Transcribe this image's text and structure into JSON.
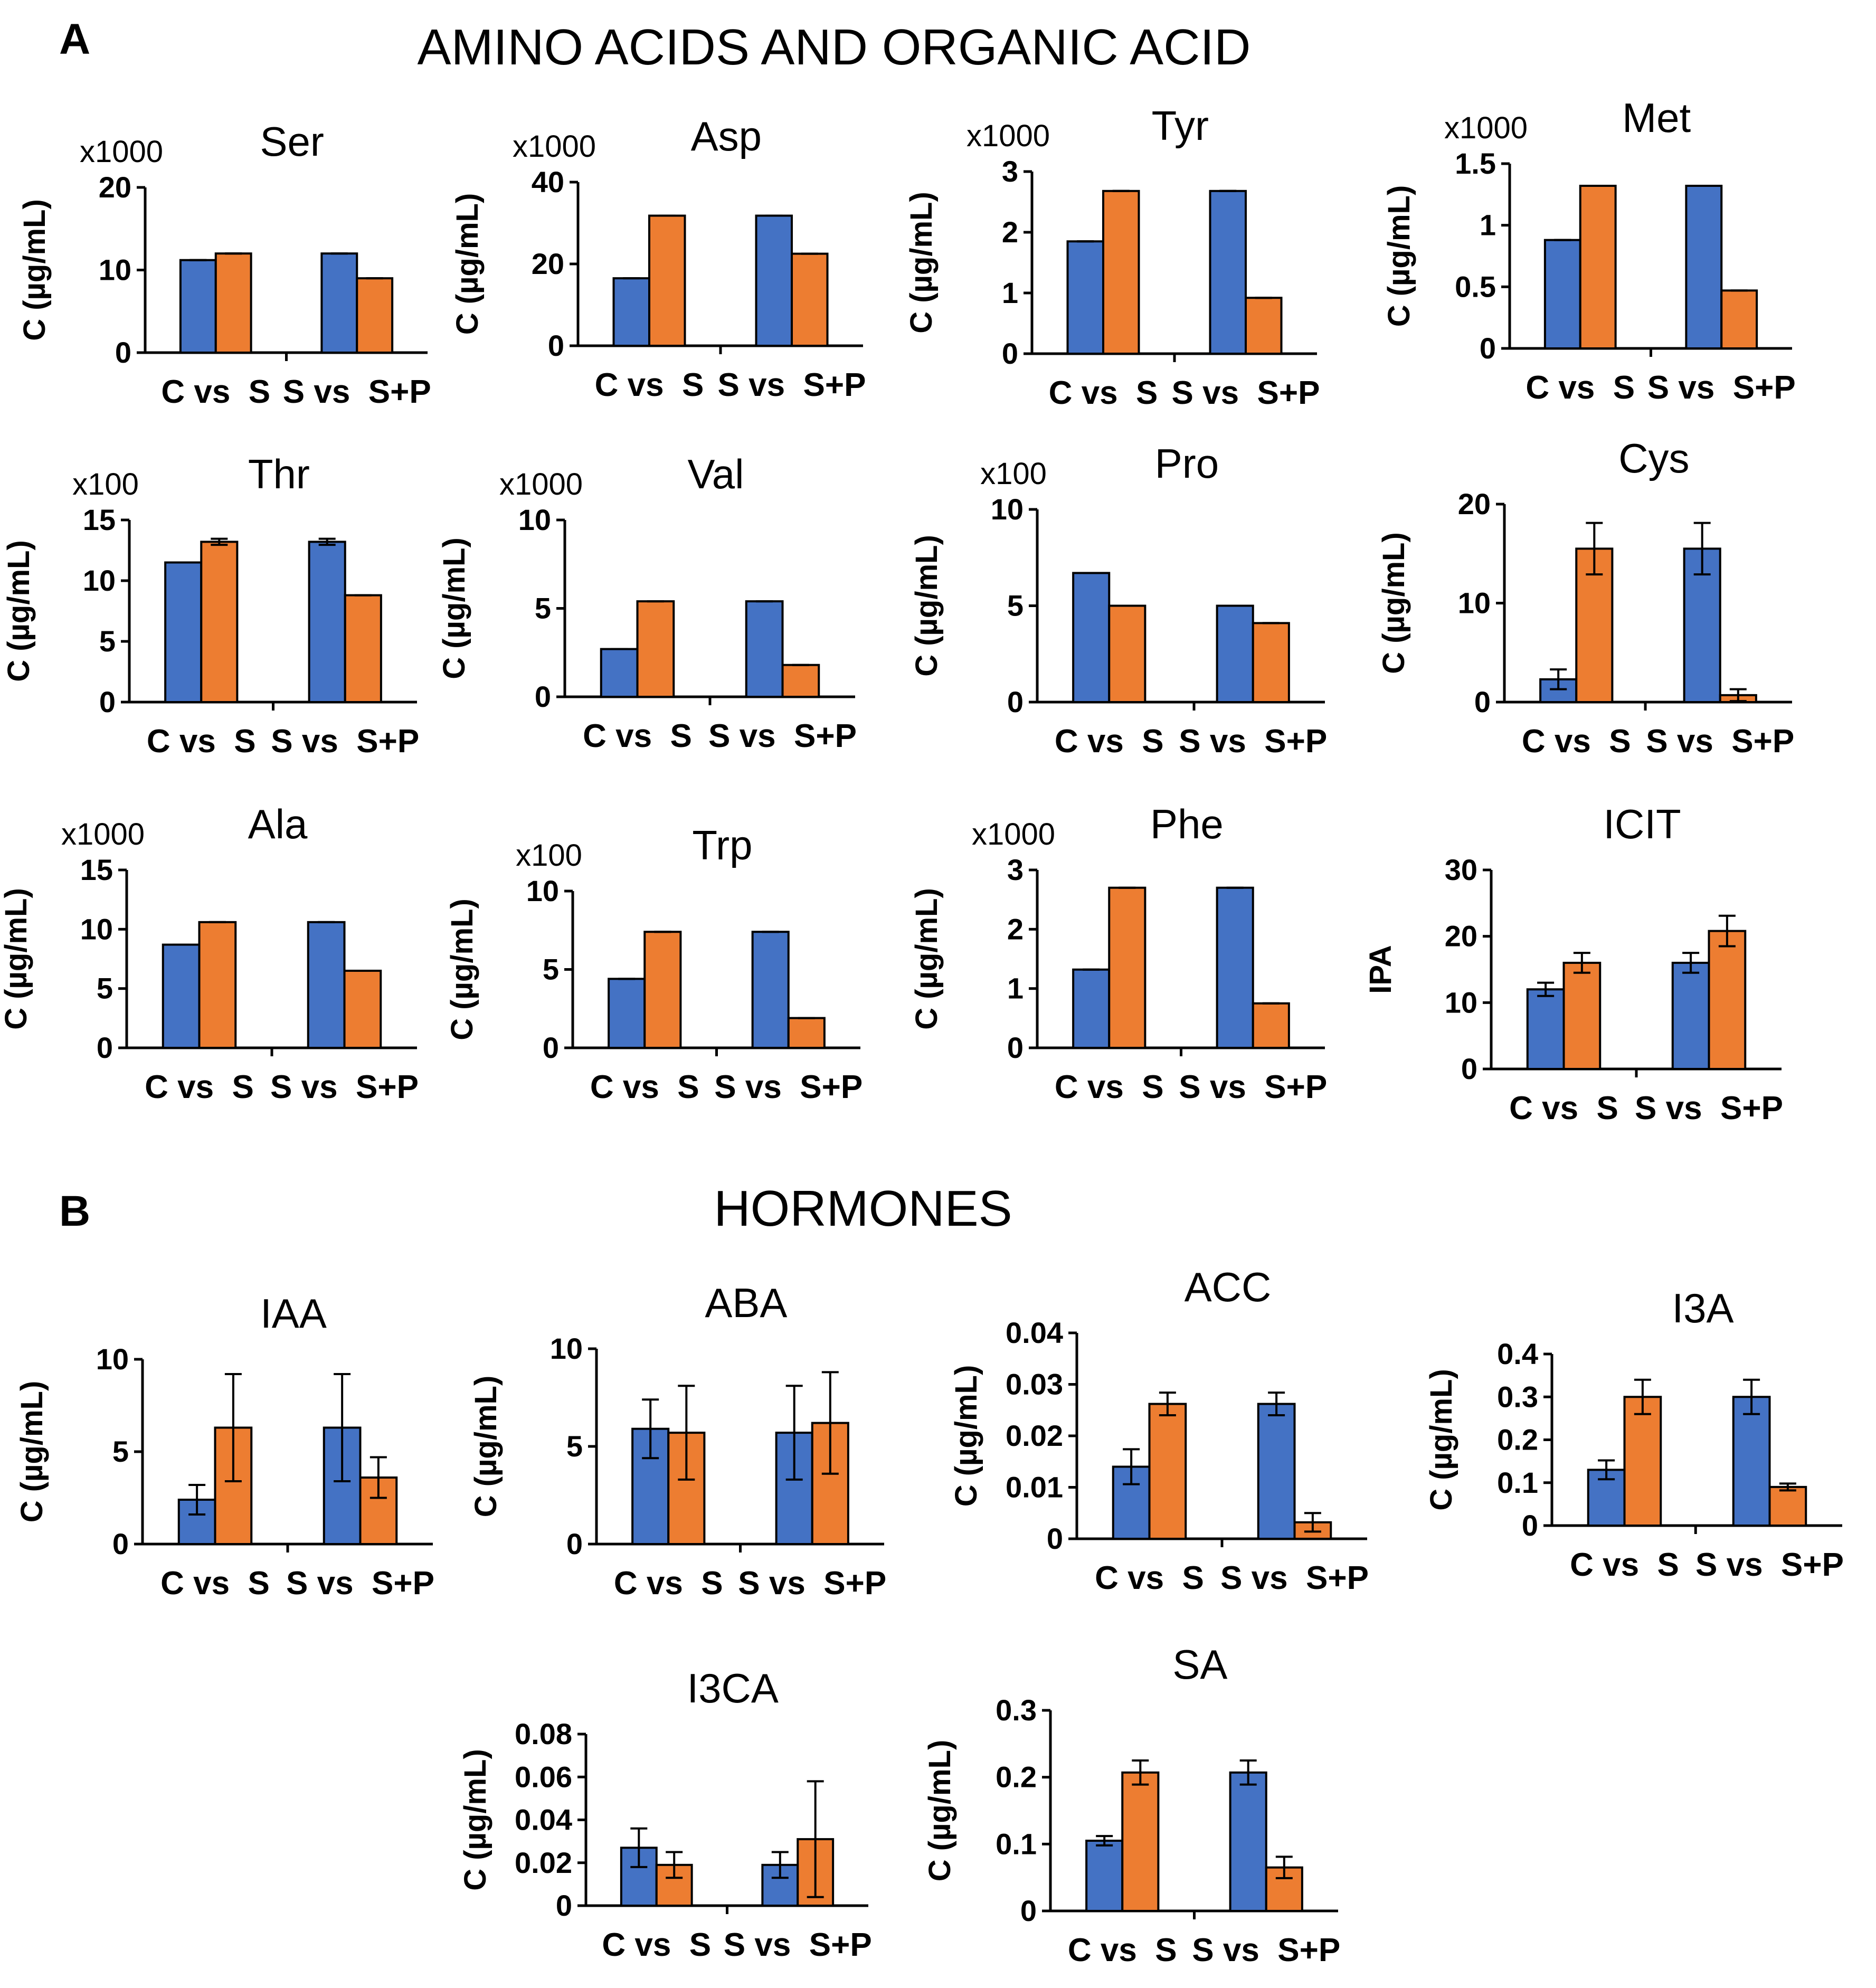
{
  "panels": {
    "a": {
      "letter": "A",
      "title": "AMINO ACIDS AND ORGANIC ACID"
    },
    "b": {
      "letter": "B",
      "title": "HORMONES"
    }
  },
  "colors": {
    "series_a": "#4472C4",
    "series_b": "#ED7D31"
  },
  "chart_data": [
    {
      "id": "ser",
      "type": "bar",
      "title": "Ser",
      "scale": "x1000",
      "ylabel": "C (µg/mL)",
      "ylim": [
        0,
        20
      ],
      "yticks": [
        "0",
        "10",
        "20"
      ],
      "categories": [
        "C vs  S",
        "S vs  S+P"
      ],
      "series": [
        {
          "name": "series-1",
          "values": [
            11.2,
            12.0
          ],
          "errors": [
            0,
            0
          ]
        },
        {
          "name": "series-2",
          "values": [
            12.0,
            9.0
          ],
          "errors": [
            0,
            0
          ]
        }
      ]
    },
    {
      "id": "asp",
      "type": "bar",
      "title": "Asp",
      "scale": "x1000",
      "ylabel": "C (µg/mL)",
      "ylim": [
        0,
        40
      ],
      "yticks": [
        "0",
        "20",
        "40"
      ],
      "categories": [
        "C vs  S",
        "S vs  S+P"
      ],
      "series": [
        {
          "name": "series-1",
          "values": [
            16.5,
            31.8
          ],
          "errors": [
            0,
            0
          ]
        },
        {
          "name": "series-2",
          "values": [
            31.8,
            22.5
          ],
          "errors": [
            0,
            0
          ]
        }
      ]
    },
    {
      "id": "tyr",
      "type": "bar",
      "title": "Tyr",
      "scale": "x1000",
      "ylabel": "C (µg/mL)",
      "ylim": [
        0,
        3
      ],
      "yticks": [
        "0",
        "1",
        "2",
        "3"
      ],
      "categories": [
        "C vs  S",
        "S vs  S+P"
      ],
      "series": [
        {
          "name": "series-1",
          "values": [
            1.85,
            2.68
          ],
          "errors": [
            0,
            0
          ]
        },
        {
          "name": "series-2",
          "values": [
            2.68,
            0.92
          ],
          "errors": [
            0,
            0
          ]
        }
      ]
    },
    {
      "id": "met",
      "type": "bar",
      "title": "Met",
      "scale": "x1000",
      "ylabel": "C (µg/mL)",
      "ylim": [
        0,
        1.5
      ],
      "yticks": [
        "0",
        "0.5",
        "1",
        "1.5"
      ],
      "categories": [
        "C vs  S",
        "S vs  S+P"
      ],
      "series": [
        {
          "name": "series-1",
          "values": [
            0.88,
            1.32
          ],
          "errors": [
            0,
            0
          ]
        },
        {
          "name": "series-2",
          "values": [
            1.32,
            0.47
          ],
          "errors": [
            0,
            0
          ]
        }
      ]
    },
    {
      "id": "thr",
      "type": "bar",
      "title": "Thr",
      "scale": "x100",
      "ylabel": "C (µg/mL)",
      "ylim": [
        0,
        15
      ],
      "yticks": [
        "0",
        "5",
        "10",
        "15"
      ],
      "categories": [
        "C vs  S",
        "S vs  S+P"
      ],
      "series": [
        {
          "name": "series-1",
          "values": [
            11.5,
            13.2
          ],
          "errors": [
            0,
            0.25
          ]
        },
        {
          "name": "series-2",
          "values": [
            13.2,
            8.8
          ],
          "errors": [
            0.25,
            0
          ]
        }
      ]
    },
    {
      "id": "val",
      "type": "bar",
      "title": "Val",
      "scale": "x1000",
      "ylabel": "C (µg/mL)",
      "ylim": [
        0,
        10
      ],
      "yticks": [
        "0",
        "5",
        "10"
      ],
      "categories": [
        "C vs  S",
        "S vs  S+P"
      ],
      "series": [
        {
          "name": "series-1",
          "values": [
            2.7,
            5.4
          ],
          "errors": [
            0,
            0
          ]
        },
        {
          "name": "series-2",
          "values": [
            5.4,
            1.8
          ],
          "errors": [
            0,
            0
          ]
        }
      ]
    },
    {
      "id": "pro",
      "type": "bar",
      "title": "Pro",
      "scale": "x100",
      "ylabel": "C (µg/mL)",
      "ylim": [
        0,
        10
      ],
      "yticks": [
        "0",
        "5",
        "10"
      ],
      "categories": [
        "C vs  S",
        "S vs  S+P"
      ],
      "series": [
        {
          "name": "series-1",
          "values": [
            6.7,
            5.0
          ],
          "errors": [
            0,
            0
          ]
        },
        {
          "name": "series-2",
          "values": [
            5.0,
            4.1
          ],
          "errors": [
            0,
            0
          ]
        }
      ]
    },
    {
      "id": "cys",
      "type": "bar",
      "title": "Cys",
      "scale": "",
      "ylabel": "C (µg/mL)",
      "ylim": [
        0,
        20
      ],
      "yticks": [
        "0",
        "10",
        "20"
      ],
      "categories": [
        "C vs  S",
        "S vs  S+P"
      ],
      "series": [
        {
          "name": "series-1",
          "values": [
            2.3,
            15.5
          ],
          "errors": [
            1.0,
            2.6
          ]
        },
        {
          "name": "series-2",
          "values": [
            15.5,
            0.7
          ],
          "errors": [
            2.6,
            0.6
          ]
        }
      ]
    },
    {
      "id": "ala",
      "type": "bar",
      "title": "Ala",
      "scale": "x1000",
      "ylabel": "C (µg/mL)",
      "ylim": [
        0,
        15
      ],
      "yticks": [
        "0",
        "5",
        "10",
        "15"
      ],
      "categories": [
        "C vs  S",
        "S vs  S+P"
      ],
      "series": [
        {
          "name": "series-1",
          "values": [
            8.7,
            10.6
          ],
          "errors": [
            0,
            0
          ]
        },
        {
          "name": "series-2",
          "values": [
            10.6,
            6.5
          ],
          "errors": [
            0,
            0
          ]
        }
      ]
    },
    {
      "id": "trp",
      "type": "bar",
      "title": "Trp",
      "scale": "x100",
      "ylabel": "C (µg/mL)",
      "ylim": [
        0,
        10
      ],
      "yticks": [
        "0",
        "5",
        "10"
      ],
      "categories": [
        "C vs  S",
        "S vs  S+P"
      ],
      "series": [
        {
          "name": "series-1",
          "values": [
            4.4,
            7.4
          ],
          "errors": [
            0,
            0
          ]
        },
        {
          "name": "series-2",
          "values": [
            7.4,
            1.9
          ],
          "errors": [
            0,
            0
          ]
        }
      ]
    },
    {
      "id": "phe",
      "type": "bar",
      "title": "Phe",
      "scale": "x1000",
      "ylabel": "C (µg/mL)",
      "ylim": [
        0,
        3
      ],
      "yticks": [
        "0",
        "1",
        "2",
        "3"
      ],
      "categories": [
        "C vs  S",
        "S vs  S+P"
      ],
      "series": [
        {
          "name": "series-1",
          "values": [
            1.32,
            2.7
          ],
          "errors": [
            0,
            0
          ]
        },
        {
          "name": "series-2",
          "values": [
            2.7,
            0.75
          ],
          "errors": [
            0,
            0
          ]
        }
      ]
    },
    {
      "id": "icit",
      "type": "bar",
      "title": "ICIT",
      "scale": "",
      "ylabel": "IPA",
      "ylim": [
        0,
        30
      ],
      "yticks": [
        "0",
        "10",
        "20",
        "30"
      ],
      "categories": [
        "C vs  S",
        "S vs  S+P"
      ],
      "series": [
        {
          "name": "series-1",
          "values": [
            12.0,
            16.0
          ],
          "errors": [
            1.0,
            1.5
          ]
        },
        {
          "name": "series-2",
          "values": [
            16.0,
            20.8
          ],
          "errors": [
            1.5,
            2.3
          ]
        }
      ]
    },
    {
      "id": "iaa",
      "type": "bar",
      "title": "IAA",
      "scale": "",
      "ylabel": "C (µg/mL)",
      "ylim": [
        0,
        10
      ],
      "yticks": [
        "0",
        "5",
        "10"
      ],
      "categories": [
        "C vs  S",
        "S vs  S+P"
      ],
      "series": [
        {
          "name": "series-1",
          "values": [
            2.4,
            6.3
          ],
          "errors": [
            0.8,
            2.9
          ]
        },
        {
          "name": "series-2",
          "values": [
            6.3,
            3.6
          ],
          "errors": [
            2.9,
            1.1
          ]
        }
      ]
    },
    {
      "id": "aba",
      "type": "bar",
      "title": "ABA",
      "scale": "",
      "ylabel": "C (µg/mL)",
      "ylim": [
        0,
        10
      ],
      "yticks": [
        "0",
        "5",
        "10"
      ],
      "categories": [
        "C vs  S",
        "S vs  S+P"
      ],
      "series": [
        {
          "name": "series-1",
          "values": [
            5.9,
            5.7
          ],
          "errors": [
            1.5,
            2.4
          ]
        },
        {
          "name": "series-2",
          "values": [
            5.7,
            6.2
          ],
          "errors": [
            2.4,
            2.6
          ]
        }
      ]
    },
    {
      "id": "acc",
      "type": "bar",
      "title": "ACC",
      "scale": "",
      "ylabel": "C (µg/mL)",
      "ylim": [
        0,
        0.04
      ],
      "yticks": [
        "0",
        "0.01",
        "0.02",
        "0.03",
        "0.04"
      ],
      "categories": [
        "C vs  S",
        "S vs  S+P"
      ],
      "series": [
        {
          "name": "series-1",
          "values": [
            0.014,
            0.0262
          ],
          "errors": [
            0.0034,
            0.0022
          ]
        },
        {
          "name": "series-2",
          "values": [
            0.0262,
            0.0032
          ],
          "errors": [
            0.0022,
            0.0018
          ]
        }
      ]
    },
    {
      "id": "i3a",
      "type": "bar",
      "title": "I3A",
      "scale": "",
      "ylabel": "C (µg/mL)",
      "ylim": [
        0,
        0.4
      ],
      "yticks": [
        "0",
        "0.1",
        "0.2",
        "0.3",
        "0.4"
      ],
      "categories": [
        "C vs  S",
        "S vs  S+P"
      ],
      "series": [
        {
          "name": "series-1",
          "values": [
            0.13,
            0.3
          ],
          "errors": [
            0.022,
            0.04
          ]
        },
        {
          "name": "series-2",
          "values": [
            0.3,
            0.09
          ],
          "errors": [
            0.04,
            0.008
          ]
        }
      ]
    },
    {
      "id": "i3ca",
      "type": "bar",
      "title": "I3CA",
      "scale": "",
      "ylabel": "C (µg/mL)",
      "ylim": [
        0,
        0.08
      ],
      "yticks": [
        "0",
        "0.02",
        "0.04",
        "0.06",
        "0.08"
      ],
      "categories": [
        "C vs  S",
        "S vs  S+P"
      ],
      "series": [
        {
          "name": "series-1",
          "values": [
            0.027,
            0.019
          ],
          "errors": [
            0.009,
            0.006
          ]
        },
        {
          "name": "series-2",
          "values": [
            0.019,
            0.031
          ],
          "errors": [
            0.006,
            0.027
          ]
        }
      ]
    },
    {
      "id": "sa",
      "type": "bar",
      "title": "SA",
      "scale": "",
      "ylabel": "C (µg/mL)",
      "ylim": [
        0,
        0.3
      ],
      "yticks": [
        "0",
        "0.1",
        "0.2",
        "0.3"
      ],
      "categories": [
        "C vs  S",
        "S vs  S+P"
      ],
      "series": [
        {
          "name": "series-1",
          "values": [
            0.105,
            0.207
          ],
          "errors": [
            0.007,
            0.018
          ]
        },
        {
          "name": "series-2",
          "values": [
            0.207,
            0.065
          ],
          "errors": [
            0.018,
            0.016
          ]
        }
      ]
    }
  ]
}
